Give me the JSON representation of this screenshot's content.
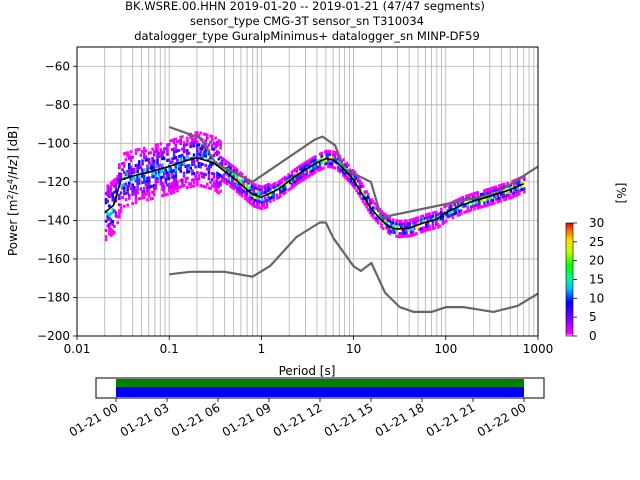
{
  "title": {
    "line1": "BK.WSRE.00.HHN   2019-01-20 -- 2019-01-21  (47/47 segments)",
    "line2": "sensor_type CMG-3T sensor_sn T310034",
    "line3": "datalogger_type GuralpMinimus+ datalogger_sn MINP-DF59"
  },
  "colorbar": {
    "label": "[%]",
    "ticks": [
      "0",
      "5",
      "10",
      "15",
      "20",
      "25",
      "30"
    ],
    "range": [
      0,
      30
    ]
  },
  "timeline": {
    "ticks": [
      "01-21 00",
      "01-21 03",
      "01-21 06",
      "01-21 09",
      "01-21 12",
      "01-21 15",
      "01-21 18",
      "01-21 21",
      "01-22 00"
    ],
    "colors": {
      "top": "#008000",
      "bottom": "#0000ff"
    }
  },
  "chart_data": {
    "type": "line",
    "xlabel": "Period [s]",
    "ylabel": "Power [m²/s⁴/Hz] [dB]",
    "xscale": "log",
    "xlim": [
      0.01,
      1000
    ],
    "ylim": [
      -200,
      -50
    ],
    "xticks": [
      "0.01",
      "0.1",
      "1",
      "10",
      "100",
      "1000"
    ],
    "yticks": [
      "−200",
      "−180",
      "−160",
      "−140",
      "−120",
      "−100",
      "−80",
      "−60"
    ],
    "grid": true,
    "series": [
      {
        "role": "nhnm",
        "color": "#666666",
        "x": [
          0.1,
          0.22,
          0.32,
          0.8,
          3.8,
          4.6,
          6.3,
          7.9,
          15.4,
          20,
          354.8,
          1000
        ],
        "y": [
          -91.5,
          -97.4,
          -110.5,
          -120,
          -98,
          -96.5,
          -101,
          -113.5,
          -120,
          -138.5,
          -126,
          -112
        ]
      },
      {
        "role": "nlnm",
        "color": "#666666",
        "x": [
          0.1,
          0.17,
          0.4,
          0.8,
          1.24,
          2.4,
          4.3,
          5.0,
          6.0,
          10,
          12,
          15.6,
          21.9,
          31.6,
          45,
          70,
          101,
          154,
          328,
          600,
          1000
        ],
        "y": [
          -168,
          -166.7,
          -166.7,
          -169.2,
          -163.7,
          -148.6,
          -141.1,
          -141.1,
          -149,
          -163.8,
          -166.2,
          -162.1,
          -177.5,
          -185,
          -187.5,
          -187.5,
          -185,
          -185,
          -187.5,
          -184.4,
          -178
        ]
      },
      {
        "role": "mode",
        "color": "#000000",
        "x": [
          0.02,
          0.025,
          0.03,
          0.04,
          0.06,
          0.1,
          0.15,
          0.2,
          0.3,
          0.5,
          0.8,
          1.0,
          1.5,
          2.5,
          4.0,
          5.0,
          6.0,
          7.0,
          10,
          15,
          20,
          25,
          30,
          40,
          60,
          80,
          100,
          150,
          200,
          300,
          500,
          700
        ],
        "y": [
          -136,
          -132,
          -119,
          -117,
          -115,
          -112,
          -109,
          -107.5,
          -110,
          -118,
          -126.5,
          -128,
          -124,
          -116,
          -110,
          -108,
          -108.5,
          -111,
          -119,
          -133,
          -140,
          -143.5,
          -144.5,
          -144,
          -141,
          -139.5,
          -136,
          -132,
          -130,
          -127.5,
          -124,
          -121
        ]
      }
    ],
    "density": {
      "description_free": true,
      "point_sets": [
        {
          "x": [
            0.02,
            0.03,
            0.05,
            0.07,
            0.1,
            0.15,
            0.2,
            0.3
          ],
          "y": [
            -124,
            -113,
            -108,
            -104,
            -101,
            -100,
            -99,
            -104
          ]
        },
        {
          "x": [
            0.02,
            0.03,
            0.05,
            0.07,
            0.1,
            0.15,
            0.2,
            0.3
          ],
          "y": [
            -140,
            -129,
            -127,
            -126,
            -124,
            -119,
            -116,
            -120
          ]
        }
      ]
    }
  }
}
